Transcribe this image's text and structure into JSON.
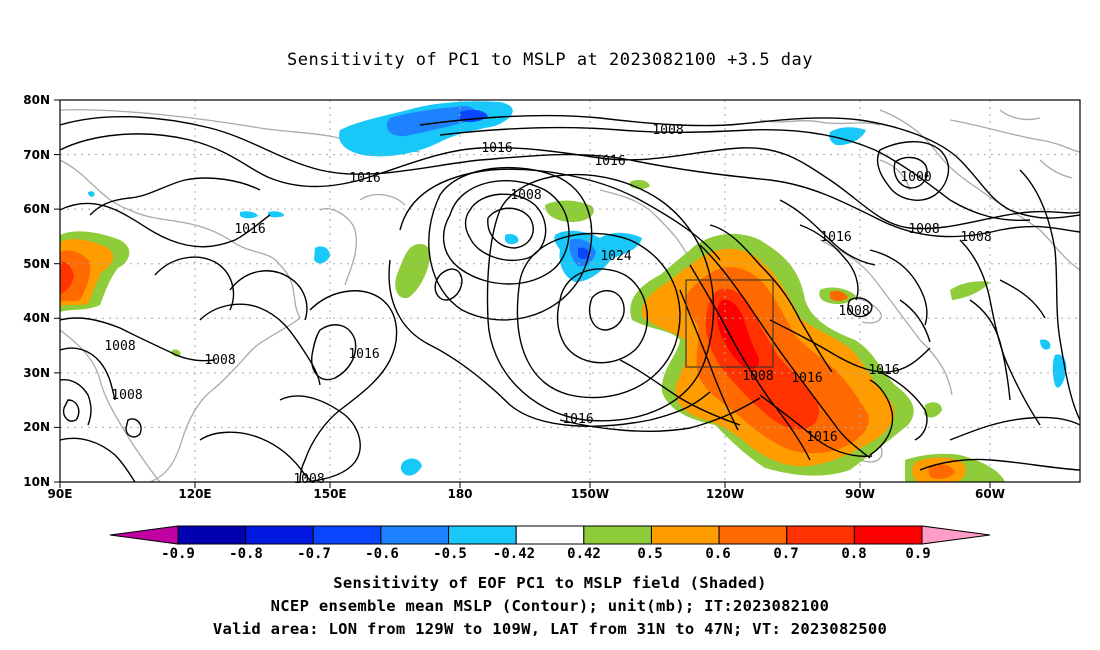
{
  "title": "Sensitivity of PC1 to MSLP at 2023082100 +3.5 day",
  "lat_labels": [
    "80N",
    "70N",
    "60N",
    "50N",
    "40N",
    "30N",
    "20N",
    "10N"
  ],
  "lon_labels": [
    "90E",
    "120E",
    "150E",
    "180",
    "150W",
    "120W",
    "90W",
    "60W"
  ],
  "colorbar": {
    "labels": [
      "-0.9",
      "-0.8",
      "-0.7",
      "-0.6",
      "-0.5",
      "-0.42",
      "0.42",
      "0.5",
      "0.6",
      "0.7",
      "0.8",
      "0.9"
    ],
    "colors": [
      "#c000a0",
      "#0000b0",
      "#0018e0",
      "#0a46ff",
      "#1e82ff",
      "#18c8f8",
      "#ffffff",
      "#8fcc3a",
      "#ff9c00",
      "#ff6a00",
      "#ff3200",
      "#ff0000",
      "#ff9cc8"
    ]
  },
  "contour_labels": [
    "1008",
    "1016",
    "1016",
    "1008",
    "1024",
    "1016",
    "1000",
    "1016",
    "1008",
    "1016",
    "1008",
    "1016",
    "1008",
    "1008",
    "1008",
    "1016",
    "1016",
    "1008",
    "1016",
    "1016",
    "1008"
  ],
  "captions": [
    "Sensitivity of EOF PC1 to MSLP field (Shaded)",
    "NCEP ensemble mean MSLP (Contour); unit(mb); IT:2023082100",
    "Valid area: LON from 129W to 109W, LAT from 31N to 47N; VT: 2023082500"
  ]
}
